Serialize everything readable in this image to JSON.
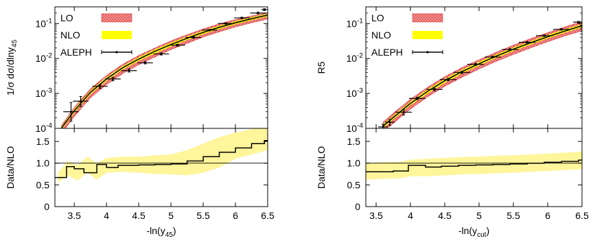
{
  "chart_data": [
    {
      "type": "line",
      "panel": "left-upper",
      "ylabel": "1/σ dσ/dlny",
      "ylabel_sub": "45",
      "yscale": "log",
      "xlim": [
        3.2,
        6.5
      ],
      "ylim": [
        0.0001,
        0.3
      ],
      "yticks": [
        {
          "value": 0.0001,
          "base": "10",
          "exp": "-4"
        },
        {
          "value": 0.001,
          "base": "10",
          "exp": "-3"
        },
        {
          "value": 0.01,
          "base": "10",
          "exp": "-2"
        },
        {
          "value": 0.1,
          "base": "10",
          "exp": "-1"
        }
      ],
      "legend": {
        "position": "top-left",
        "entries": [
          "LO",
          "NLO",
          "ALEPH"
        ]
      },
      "series": [
        {
          "name": "LO",
          "style": "band",
          "x": [
            3.3,
            3.5,
            3.75,
            4.0,
            4.25,
            4.5,
            4.75,
            5.0,
            5.25,
            5.5,
            5.75,
            6.0,
            6.25,
            6.5
          ],
          "lower": [
            7e-05,
            0.00022,
            0.00075,
            0.0018,
            0.0037,
            0.0066,
            0.011,
            0.018,
            0.027,
            0.041,
            0.058,
            0.08,
            0.105,
            0.135
          ],
          "upper": [
            0.00012,
            0.0004,
            0.00135,
            0.0033,
            0.0068,
            0.0122,
            0.02,
            0.032,
            0.048,
            0.07,
            0.098,
            0.13,
            0.165,
            0.2
          ]
        },
        {
          "name": "NLO",
          "style": "band",
          "x": [
            3.3,
            3.5,
            3.75,
            4.0,
            4.25,
            4.5,
            4.75,
            5.0,
            5.25,
            5.5,
            5.75,
            6.0,
            6.25,
            6.5
          ],
          "lower": [
            9e-05,
            0.00028,
            0.00095,
            0.0023,
            0.0048,
            0.0085,
            0.014,
            0.022,
            0.034,
            0.05,
            0.07,
            0.095,
            0.125,
            0.16
          ],
          "upper": [
            0.00011,
            0.00036,
            0.0012,
            0.0029,
            0.006,
            0.0108,
            0.018,
            0.028,
            0.042,
            0.062,
            0.086,
            0.116,
            0.15,
            0.19
          ],
          "central": [
            0.0001,
            0.00032,
            0.00107,
            0.0026,
            0.0054,
            0.0096,
            0.016,
            0.025,
            0.038,
            0.056,
            0.078,
            0.105,
            0.137,
            0.175
          ]
        },
        {
          "name": "ALEPH",
          "style": "points",
          "points": [
            {
              "x": 3.45,
              "xerr": 0.12,
              "y": 0.0003,
              "ylo": 0.00016,
              "yhi": 0.00055
            },
            {
              "x": 3.6,
              "xerr": 0.12,
              "y": 0.0006,
              "ylo": 0.00042,
              "yhi": 0.00082
            },
            {
              "x": 3.9,
              "xerr": 0.12,
              "y": 0.0016,
              "ylo": 0.0014,
              "yhi": 0.0018
            },
            {
              "x": 4.1,
              "xerr": 0.12,
              "y": 0.0026,
              "ylo": 0.0023,
              "yhi": 0.0029
            },
            {
              "x": 4.35,
              "xerr": 0.12,
              "y": 0.0045,
              "ylo": 0.0041,
              "yhi": 0.005
            },
            {
              "x": 4.6,
              "xerr": 0.12,
              "y": 0.0075,
              "ylo": 0.007,
              "yhi": 0.0081
            },
            {
              "x": 4.85,
              "xerr": 0.12,
              "y": 0.0135,
              "ylo": 0.0126,
              "yhi": 0.0145
            },
            {
              "x": 5.1,
              "xerr": 0.12,
              "y": 0.024,
              "ylo": 0.0225,
              "yhi": 0.0255
            },
            {
              "x": 5.35,
              "xerr": 0.12,
              "y": 0.04,
              "ylo": 0.038,
              "yhi": 0.042
            },
            {
              "x": 5.6,
              "xerr": 0.12,
              "y": 0.065,
              "ylo": 0.062,
              "yhi": 0.068
            },
            {
              "x": 5.85,
              "xerr": 0.12,
              "y": 0.1,
              "ylo": 0.096,
              "yhi": 0.105
            },
            {
              "x": 6.1,
              "xerr": 0.12,
              "y": 0.145,
              "ylo": 0.138,
              "yhi": 0.152
            },
            {
              "x": 6.35,
              "xerr": 0.12,
              "y": 0.2,
              "ylo": 0.19,
              "yhi": 0.21
            },
            {
              "x": 6.45,
              "xerr": 0.05,
              "y": 0.25,
              "ylo": 0.235,
              "yhi": 0.265
            }
          ]
        }
      ]
    },
    {
      "type": "line",
      "panel": "left-lower",
      "ylabel": "Data/NLO",
      "xlabel": "-ln(y",
      "xlabel_sub": "45",
      "xlabel_end": ")",
      "xlim": [
        3.2,
        6.5
      ],
      "ylim": [
        0,
        1.8
      ],
      "yticks": [
        0,
        0.5,
        1.0,
        1.5
      ],
      "ytick_labels": [
        "0",
        "0.5",
        "1.0",
        "1.5"
      ],
      "xticks": [
        3.5,
        4,
        4.5,
        5,
        5.5,
        6,
        6.5
      ],
      "xtick_labels": [
        "3.5",
        "4",
        "4.5",
        "5",
        "5.5",
        "6",
        "6.5"
      ],
      "reference_line": 1.0,
      "series": [
        {
          "name": "",
          "style": "band",
          "x": [
            3.25,
            3.4,
            3.55,
            3.7,
            3.85,
            4.0,
            4.25,
            4.5,
            4.75,
            5.0,
            5.25,
            5.5,
            5.75,
            6.0,
            6.25,
            6.5
          ],
          "lower": [
            0.55,
            0.72,
            0.6,
            0.78,
            0.62,
            0.78,
            0.8,
            0.78,
            0.75,
            0.74,
            0.72,
            0.78,
            0.9,
            1.1,
            1.2,
            1.3
          ],
          "upper": [
            0.78,
            1.05,
            0.95,
            1.15,
            1.0,
            1.12,
            1.15,
            1.15,
            1.18,
            1.2,
            1.3,
            1.45,
            1.6,
            1.7,
            1.78,
            1.85
          ]
        },
        {
          "name": "",
          "style": "step",
          "edges": [
            3.2,
            3.38,
            3.5,
            3.65,
            3.85,
            4.0,
            4.18,
            4.5,
            4.75,
            5.0,
            5.25,
            5.5,
            5.75,
            6.0,
            6.25,
            6.45,
            6.5
          ],
          "values": [
            0.67,
            0.92,
            0.87,
            0.78,
            0.97,
            0.9,
            0.95,
            0.96,
            0.97,
            0.98,
            1.05,
            1.15,
            1.25,
            1.35,
            1.45,
            1.52
          ]
        }
      ]
    },
    {
      "type": "line",
      "panel": "right-upper",
      "ylabel": "R5",
      "yscale": "log",
      "xlim": [
        3.35,
        6.5
      ],
      "ylim": [
        0.0001,
        0.3
      ],
      "yticks": [
        {
          "value": 0.0001,
          "base": "10",
          "exp": "-4"
        },
        {
          "value": 0.001,
          "base": "10",
          "exp": "-3"
        },
        {
          "value": 0.01,
          "base": "10",
          "exp": "-2"
        },
        {
          "value": 0.1,
          "base": "10",
          "exp": "-1"
        }
      ],
      "legend": {
        "position": "top-left",
        "entries": [
          "LO",
          "NLO",
          "ALEPH"
        ]
      },
      "series": [
        {
          "name": "LO",
          "style": "band",
          "x": [
            3.6,
            3.75,
            4.0,
            4.25,
            4.5,
            4.75,
            5.0,
            5.25,
            5.5,
            5.75,
            6.0,
            6.25,
            6.5
          ],
          "lower": [
            8e-05,
            0.00014,
            0.00036,
            0.0008,
            0.0016,
            0.0029,
            0.005,
            0.0083,
            0.013,
            0.02,
            0.03,
            0.044,
            0.062
          ],
          "upper": [
            0.00015,
            0.00027,
            0.00068,
            0.0015,
            0.003,
            0.0055,
            0.0092,
            0.015,
            0.024,
            0.037,
            0.055,
            0.08,
            0.115
          ]
        },
        {
          "name": "NLO",
          "style": "band",
          "x": [
            3.6,
            3.75,
            4.0,
            4.25,
            4.5,
            4.75,
            5.0,
            5.25,
            5.5,
            5.75,
            6.0,
            6.25,
            6.5
          ],
          "lower": [
            0.0001,
            0.00018,
            0.00046,
            0.001,
            0.002,
            0.0037,
            0.0063,
            0.0104,
            0.0165,
            0.025,
            0.038,
            0.055,
            0.078
          ],
          "upper": [
            0.00013,
            0.00023,
            0.00058,
            0.0013,
            0.0026,
            0.0047,
            0.008,
            0.013,
            0.0205,
            0.031,
            0.047,
            0.068,
            0.096
          ],
          "central": [
            0.000115,
            0.000205,
            0.00052,
            0.00115,
            0.0023,
            0.0042,
            0.0071,
            0.0117,
            0.0185,
            0.028,
            0.042,
            0.061,
            0.087
          ]
        },
        {
          "name": "ALEPH",
          "style": "points",
          "points": [
            {
              "x": 3.6,
              "xerr": 0.07,
              "y": 0.00011,
              "ylo": 9e-05,
              "yhi": 0.00013
            },
            {
              "x": 3.7,
              "xerr": 0.07,
              "y": 0.00015,
              "ylo": 0.00012,
              "yhi": 0.00018
            },
            {
              "x": 3.9,
              "xerr": 0.12,
              "y": 0.00029,
              "ylo": 0.00024,
              "yhi": 0.00034
            },
            {
              "x": 4.1,
              "xerr": 0.12,
              "y": 0.00072,
              "ylo": 0.00066,
              "yhi": 0.00078
            },
            {
              "x": 4.35,
              "xerr": 0.12,
              "y": 0.0013,
              "ylo": 0.0012,
              "yhi": 0.0014
            },
            {
              "x": 4.55,
              "xerr": 0.12,
              "y": 0.0025,
              "ylo": 0.0023,
              "yhi": 0.0027
            },
            {
              "x": 4.75,
              "xerr": 0.12,
              "y": 0.004,
              "ylo": 0.0037,
              "yhi": 0.0043
            },
            {
              "x": 4.95,
              "xerr": 0.12,
              "y": 0.0068,
              "ylo": 0.0064,
              "yhi": 0.0072
            },
            {
              "x": 5.2,
              "xerr": 0.12,
              "y": 0.011,
              "ylo": 0.0104,
              "yhi": 0.0116
            },
            {
              "x": 5.45,
              "xerr": 0.12,
              "y": 0.018,
              "ylo": 0.017,
              "yhi": 0.019
            },
            {
              "x": 5.7,
              "xerr": 0.12,
              "y": 0.029,
              "ylo": 0.0275,
              "yhi": 0.0305
            },
            {
              "x": 5.95,
              "xerr": 0.12,
              "y": 0.045,
              "ylo": 0.043,
              "yhi": 0.047
            },
            {
              "x": 6.2,
              "xerr": 0.12,
              "y": 0.068,
              "ylo": 0.065,
              "yhi": 0.071
            },
            {
              "x": 6.45,
              "xerr": 0.08,
              "y": 0.11,
              "ylo": 0.105,
              "yhi": 0.115
            }
          ]
        }
      ]
    },
    {
      "type": "line",
      "panel": "right-lower",
      "ylabel": "Data/NLO",
      "xlabel": "-ln(y",
      "xlabel_sub": "cut",
      "xlabel_end": ")",
      "xlim": [
        3.35,
        6.5
      ],
      "ylim": [
        0,
        1.8
      ],
      "yticks": [
        0,
        0.5,
        1.0,
        1.5
      ],
      "ytick_labels": [
        "0",
        "0.5",
        "1.0",
        "1.5"
      ],
      "xticks": [
        3.5,
        4,
        4.5,
        5,
        5.5,
        6,
        6.5
      ],
      "xtick_labels": [
        "3.5",
        "4",
        "4.5",
        "5",
        "5.5",
        "6",
        "6.5"
      ],
      "reference_line": 1.0,
      "series": [
        {
          "name": "",
          "style": "band",
          "x": [
            3.35,
            3.6,
            3.85,
            4.0,
            4.25,
            4.5,
            4.75,
            5.0,
            5.25,
            5.5,
            5.75,
            6.0,
            6.25,
            6.5
          ],
          "lower": [
            0.62,
            0.64,
            0.65,
            0.7,
            0.7,
            0.72,
            0.74,
            0.75,
            0.77,
            0.78,
            0.8,
            0.82,
            0.84,
            0.86
          ],
          "upper": [
            1.0,
            1.02,
            1.03,
            1.08,
            1.1,
            1.12,
            1.14,
            1.15,
            1.17,
            1.18,
            1.2,
            1.22,
            1.24,
            1.27
          ]
        },
        {
          "name": "",
          "style": "step",
          "edges": [
            3.35,
            3.62,
            3.75,
            3.97,
            4.22,
            4.45,
            4.7,
            4.95,
            5.2,
            5.45,
            5.7,
            5.95,
            6.2,
            6.45,
            6.5
          ],
          "values": [
            0.8,
            0.8,
            0.82,
            0.95,
            0.91,
            0.93,
            0.95,
            0.96,
            0.97,
            0.98,
            1.0,
            1.02,
            1.04,
            1.07
          ]
        }
      ]
    }
  ],
  "colors": {
    "lo_fill": "#f08a8a",
    "lo_edge": "#d93a3a",
    "nlo_fill": "#ffff00",
    "ratio_band": "#fff59a",
    "data": "#000000",
    "nlo_central": "#000000"
  }
}
